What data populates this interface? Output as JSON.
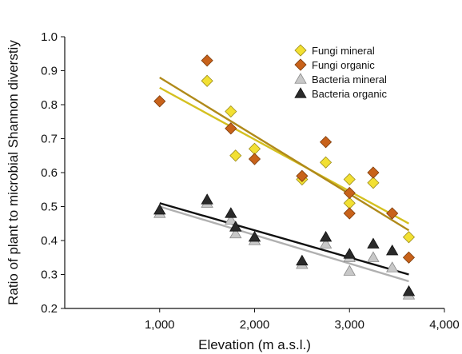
{
  "chart_data": {
    "type": "scatter",
    "xlabel": "Elevation (m a.s.l.)",
    "ylabel": "Ratio of plant to microbial Shannon diverstiy",
    "xlim": [
      0,
      4000
    ],
    "ylim": [
      0.2,
      1.0
    ],
    "x_ticks": [
      1000,
      2000,
      3000,
      4000
    ],
    "x_tick_labels": [
      "1,000",
      "2,000",
      "3,000",
      "4,000"
    ],
    "y_ticks": [
      0.2,
      0.3,
      0.4,
      0.5,
      0.6,
      0.7,
      0.8,
      0.9,
      1.0
    ],
    "y_tick_labels": [
      "0.2",
      "0.3",
      "0.4",
      "0.5",
      "0.6",
      "0.7",
      "0.8",
      "0.9",
      "1.0"
    ],
    "grid": false,
    "legend_position": "top-right",
    "series": [
      {
        "name": "Fungi mineral",
        "marker": "diamond",
        "color": "#f2e033",
        "stroke": "#9a8a1a",
        "trend_color": "#d4c020",
        "x": [
          1500,
          1750,
          1800,
          2000,
          2500,
          2750,
          3000,
          3000,
          3250,
          3625
        ],
        "y": [
          0.87,
          0.78,
          0.65,
          0.67,
          0.58,
          0.63,
          0.58,
          0.51,
          0.57,
          0.41
        ],
        "trend": [
          [
            1000,
            0.85
          ],
          [
            3625,
            0.45
          ]
        ]
      },
      {
        "name": "Fungi organic",
        "marker": "diamond",
        "color": "#c8621a",
        "stroke": "#7a3a0a",
        "trend_color": "#b08a1a",
        "x": [
          1000,
          1500,
          1750,
          2000,
          2500,
          2750,
          3000,
          3000,
          3250,
          3450,
          3625
        ],
        "y": [
          0.81,
          0.93,
          0.73,
          0.64,
          0.59,
          0.69,
          0.54,
          0.48,
          0.6,
          0.48,
          0.35
        ],
        "trend": [
          [
            1000,
            0.88
          ],
          [
            3625,
            0.43
          ]
        ]
      },
      {
        "name": "Bacteria mineral",
        "marker": "triangle",
        "color": "#c8c8c8",
        "stroke": "#8a8a8a",
        "trend_color": "#b0b0b0",
        "x": [
          1000,
          1500,
          1750,
          1800,
          2000,
          2500,
          2750,
          3000,
          3000,
          3250,
          3450,
          3625
        ],
        "y": [
          0.48,
          0.51,
          0.46,
          0.42,
          0.4,
          0.33,
          0.39,
          0.35,
          0.31,
          0.35,
          0.32,
          0.24
        ],
        "trend": [
          [
            1000,
            0.5
          ],
          [
            3625,
            0.28
          ]
        ]
      },
      {
        "name": "Bacteria organic",
        "marker": "triangle",
        "color": "#2a2a2a",
        "stroke": "#111111",
        "trend_color": "#111111",
        "x": [
          1000,
          1500,
          1750,
          1800,
          2000,
          2500,
          2750,
          3000,
          3250,
          3450,
          3625
        ],
        "y": [
          0.49,
          0.52,
          0.48,
          0.44,
          0.41,
          0.34,
          0.41,
          0.36,
          0.39,
          0.37,
          0.25
        ],
        "trend": [
          [
            1000,
            0.51
          ],
          [
            3625,
            0.3
          ]
        ]
      }
    ]
  }
}
